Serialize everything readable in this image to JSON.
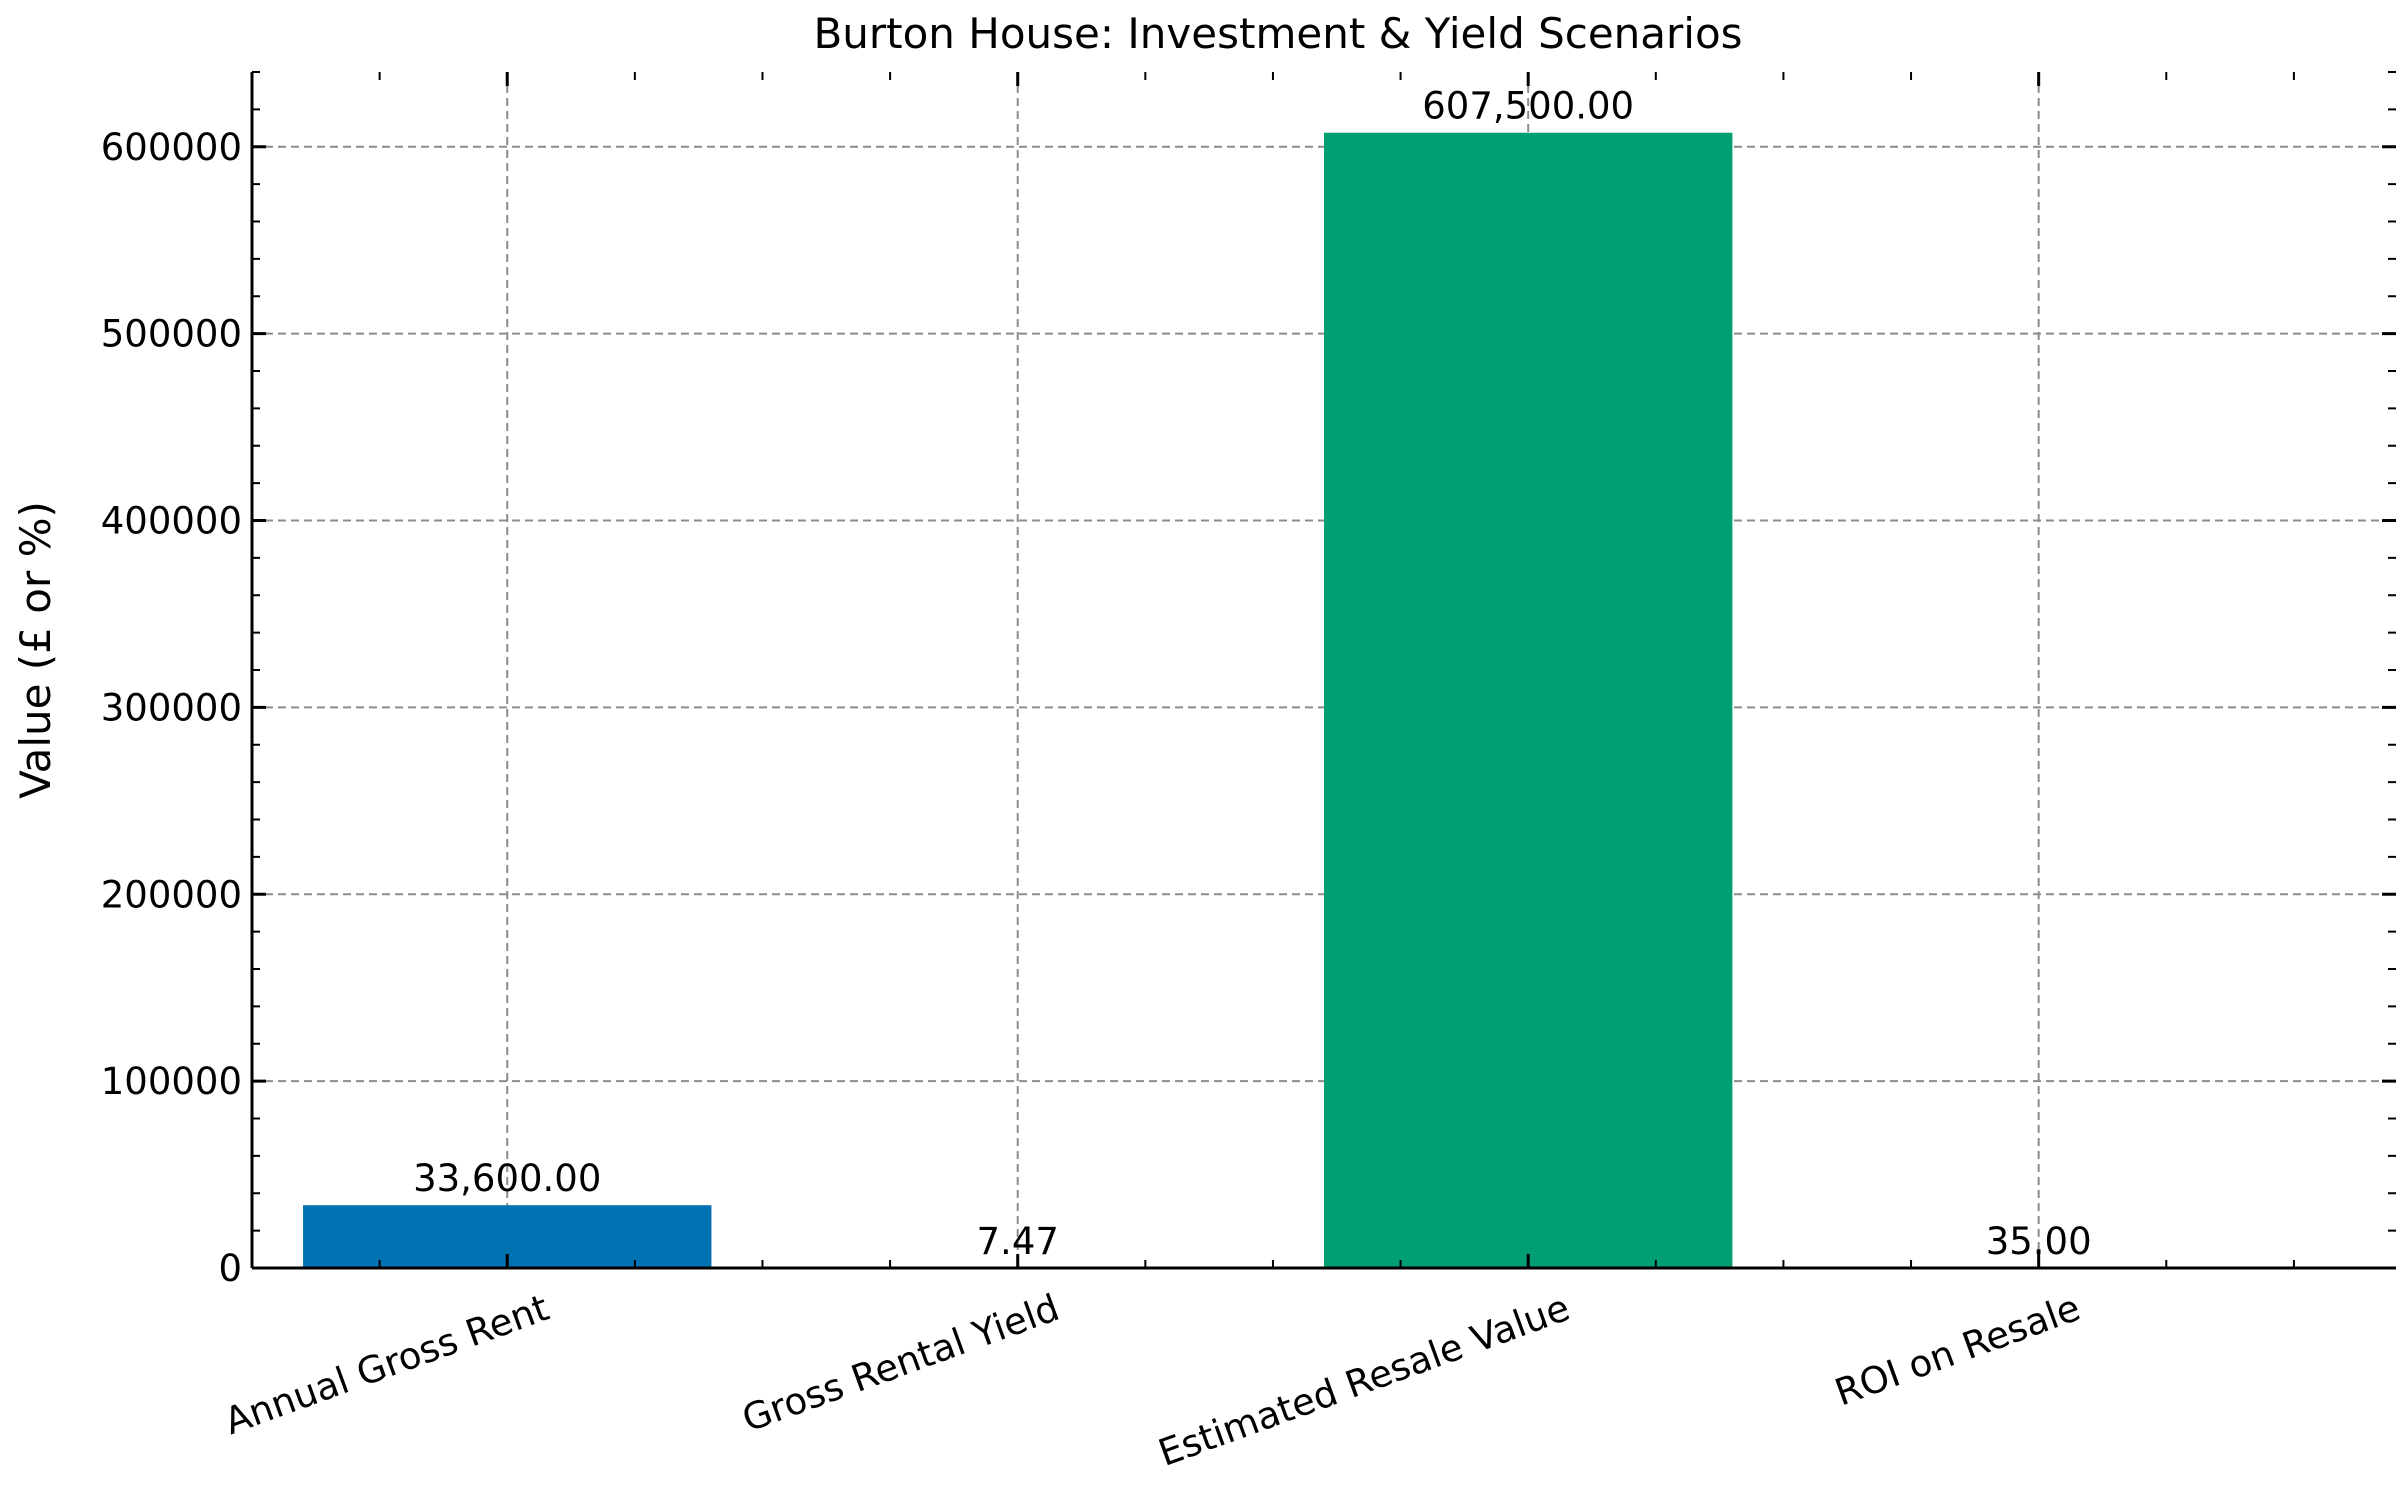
{
  "chart_data": {
    "type": "bar",
    "title": "Burton House: Investment & Yield Scenarios",
    "xlabel": "",
    "ylabel": "Value (£ or %)",
    "categories": [
      "Annual Gross Rent",
      "Gross Rental Yield",
      "Estimated Resale Value",
      "ROI on Resale"
    ],
    "values": [
      33600,
      7.47,
      607500,
      35
    ],
    "data_labels": [
      "33,600.00",
      "7.47",
      "607,500.00",
      "35.00"
    ],
    "colors": [
      "#0072B2",
      "#E69F00",
      "#009E73",
      "#D55E00"
    ],
    "ylim": [
      0,
      640000
    ],
    "yticks": [
      0,
      100000,
      200000,
      300000,
      400000,
      500000,
      600000
    ],
    "ytick_labels": [
      "0",
      "100000",
      "200000",
      "300000",
      "400000",
      "500000",
      "600000"
    ],
    "grid": true,
    "legend": "none"
  }
}
